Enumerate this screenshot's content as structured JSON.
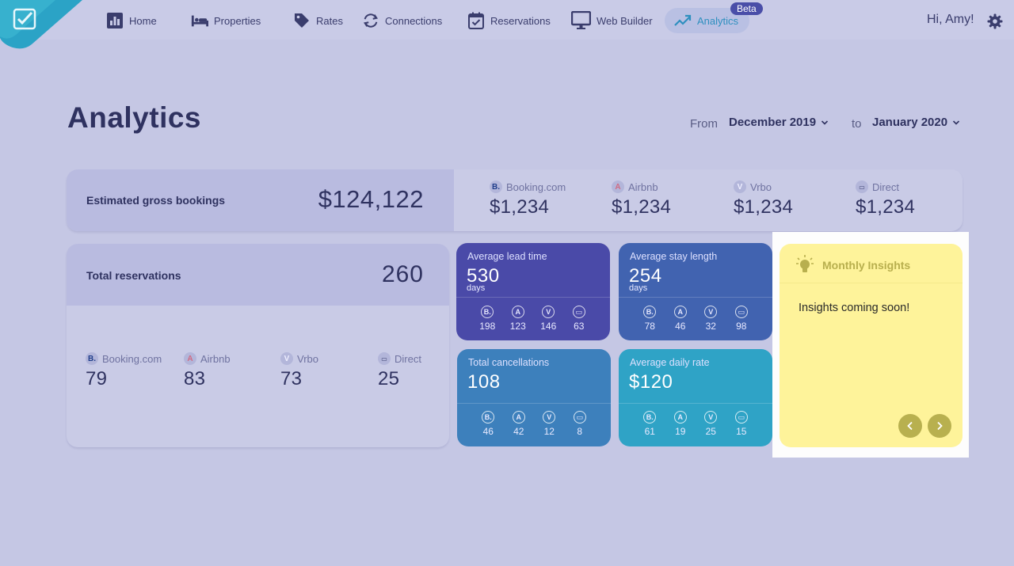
{
  "nav": {
    "items": [
      {
        "label": "Home",
        "icon": "bar-chart-icon"
      },
      {
        "label": "Properties",
        "icon": "bed-icon"
      },
      {
        "label": "Rates",
        "icon": "tag-icon"
      },
      {
        "label": "Connections",
        "icon": "sync-icon"
      },
      {
        "label": "Reservations",
        "icon": "calendar-icon"
      },
      {
        "label": "Web Builder",
        "icon": "monitor-icon"
      },
      {
        "label": "Analytics",
        "icon": "trend-icon"
      }
    ],
    "beta_badge": "Beta",
    "greeting": "Hi, Amy!"
  },
  "header": {
    "title": "Analytics",
    "from_label": "From",
    "from_value": "December 2019",
    "to_label": "to",
    "to_value": "January 2020"
  },
  "gross": {
    "label": "Estimated gross bookings",
    "value": "$124,122",
    "channels": [
      {
        "name": "Booking.com",
        "value": "$1,234"
      },
      {
        "name": "Airbnb",
        "value": "$1,234"
      },
      {
        "name": "Vrbo",
        "value": "$1,234"
      },
      {
        "name": "Direct",
        "value": "$1,234"
      }
    ]
  },
  "reservations": {
    "label": "Total reservations",
    "value": "260",
    "channels": [
      {
        "name": "Booking.com",
        "value": "79"
      },
      {
        "name": "Airbnb",
        "value": "83"
      },
      {
        "name": "Vrbo",
        "value": "73"
      },
      {
        "name": "Direct",
        "value": "25"
      }
    ]
  },
  "tiles": {
    "lead_time": {
      "label": "Average lead time",
      "value": "530",
      "unit": "days",
      "stats": [
        "198",
        "123",
        "146",
        "63"
      ],
      "color": "#4a4aa8"
    },
    "stay_length": {
      "label": "Average stay length",
      "value": "254",
      "unit": "days",
      "stats": [
        "78",
        "46",
        "32",
        "98"
      ],
      "color": "#4163b0"
    },
    "cancellations": {
      "label": "Total cancellations",
      "value": "108",
      "stats": [
        "46",
        "42",
        "12",
        "8"
      ],
      "color": "#3d80bc"
    },
    "daily_rate": {
      "label": "Average daily rate",
      "value": "$120",
      "stats": [
        "61",
        "19",
        "25",
        "15"
      ],
      "color": "#2fa3c6"
    }
  },
  "insights": {
    "title": "Monthly Insights",
    "text": "Insights coming soon!",
    "color": "#fef39a"
  }
}
